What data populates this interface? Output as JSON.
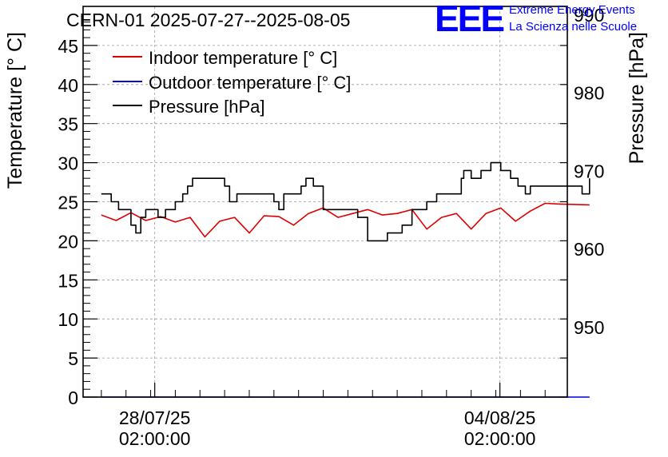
{
  "header": {
    "title": "CERN-01 2025-07-27--2025-08-05",
    "logo_text": "EEE",
    "logo_line1": "Extreme Energy Events",
    "logo_line2": "La Scienza nelle Scuole"
  },
  "colors": {
    "indoor": "#dd0000",
    "outdoor": "#0000dd",
    "pressure": "#000000",
    "grid": "#999999",
    "logo": "#0000ff"
  },
  "chart_data": {
    "type": "line",
    "title": "CERN-01 2025-07-27--2025-08-05",
    "xlabel": "",
    "ylabel": "Temperature [° C]",
    "y2label": "Pressure [hPa]",
    "ylim": [
      0,
      50
    ],
    "y2lim": [
      941,
      991
    ],
    "x_unit": "days since 2025-07-27 00:00",
    "xlim": [
      -0.37,
      9.45
    ],
    "x_ticks": [
      {
        "x": 1.083,
        "label_line1": "28/07/25",
        "label_line2": "02:00:00"
      },
      {
        "x": 8.083,
        "label_line1": "04/08/25",
        "label_line2": "02:00:00"
      }
    ],
    "y_ticks": [
      0,
      5,
      10,
      15,
      20,
      25,
      30,
      35,
      40,
      45
    ],
    "y2_ticks": [
      950,
      960,
      970,
      980,
      990
    ],
    "legend_position": "top-left",
    "grid": true,
    "series": [
      {
        "name": "Indoor temperature [° C]",
        "axis": "left",
        "step": false,
        "x": [
          0,
          0.3,
          0.6,
          0.9,
          1.2,
          1.5,
          1.8,
          2.1,
          2.4,
          2.7,
          3.0,
          3.3,
          3.6,
          3.9,
          4.2,
          4.5,
          4.8,
          5.1,
          5.4,
          5.7,
          6.0,
          6.3,
          6.6,
          6.9,
          7.2,
          7.5,
          7.8,
          8.1,
          8.4,
          8.7,
          9.0,
          9.3,
          9.9
        ],
        "values": [
          23.3,
          22.6,
          23.6,
          22.6,
          23.1,
          22.4,
          23.0,
          20.5,
          22.5,
          23.0,
          21.0,
          23.2,
          23.1,
          22.0,
          23.5,
          24.2,
          23.0,
          23.5,
          24.0,
          23.3,
          23.5,
          24.0,
          21.5,
          23.0,
          23.5,
          21.5,
          23.5,
          24.2,
          22.5,
          23.8,
          24.8,
          24.7,
          24.6
        ]
      },
      {
        "name": "Outdoor temperature [° C]",
        "axis": "left",
        "step": false,
        "x": [
          0,
          9.9
        ],
        "values": [
          0,
          0
        ]
      },
      {
        "name": "Pressure [hPa]",
        "axis": "right",
        "step": true,
        "x": [
          0,
          0.2,
          0.35,
          0.6,
          0.7,
          0.8,
          0.9,
          1.0,
          1.15,
          1.3,
          1.5,
          1.65,
          1.75,
          1.85,
          2.0,
          2.5,
          2.6,
          2.75,
          3.2,
          3.5,
          3.6,
          3.7,
          3.9,
          4.05,
          4.15,
          4.3,
          4.5,
          4.95,
          5.2,
          5.4,
          5.7,
          5.8,
          6.1,
          6.3,
          6.6,
          6.8,
          6.95,
          7.3,
          7.35,
          7.5,
          7.7,
          7.9,
          8.1,
          8.3,
          8.45,
          8.6,
          8.7,
          9.5,
          9.75,
          9.9
        ],
        "values": [
          967,
          966,
          965,
          963,
          962,
          964,
          965,
          965,
          964,
          965,
          966,
          967,
          968,
          969,
          969,
          968,
          966,
          967,
          967,
          966,
          965,
          967,
          967,
          968,
          969,
          968,
          965,
          965,
          964,
          961,
          961,
          962,
          963,
          965,
          966,
          967,
          967,
          969,
          970,
          969,
          970,
          971,
          970,
          969,
          968,
          967,
          968,
          968,
          967,
          969
        ]
      }
    ]
  }
}
